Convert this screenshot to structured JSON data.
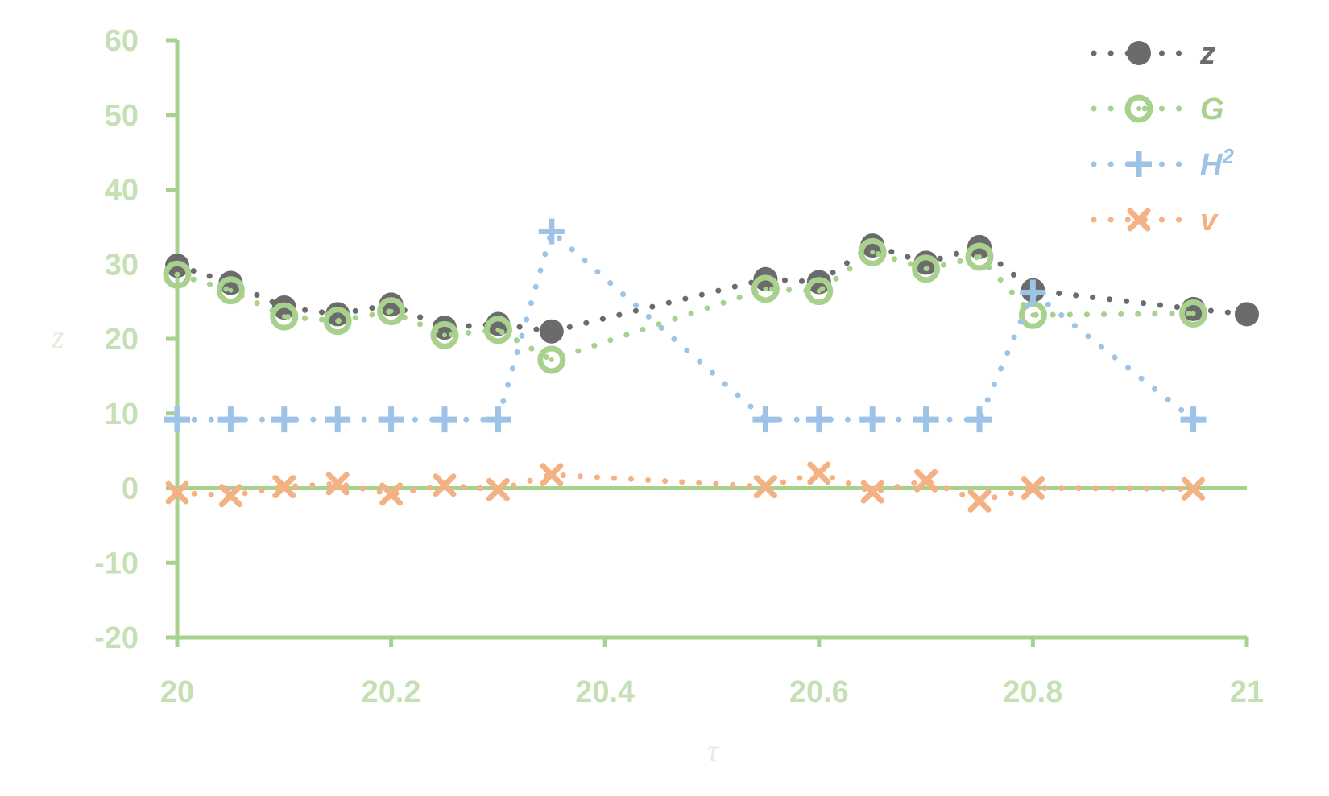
{
  "chart_data": {
    "type": "scatter",
    "xlabel": "τ",
    "ylabel": "z",
    "xlim": [
      20,
      21
    ],
    "ylim": [
      -20,
      60
    ],
    "x_ticks": [
      "20",
      "20.2",
      "20.4",
      "20.6",
      "20.8",
      "21"
    ],
    "y_ticks": [
      "60",
      "50",
      "40",
      "30",
      "20",
      "10",
      "0",
      "-10",
      "-20"
    ],
    "grid": false,
    "legend_position": "top-right",
    "series": [
      {
        "name": "z",
        "label_main": "z",
        "label_sup": "",
        "color": "#6b6b6b",
        "marker": "filled-circle",
        "x": [
          20,
          20.05,
          20.1,
          20.15,
          20.2,
          20.25,
          20.3,
          20.35,
          20.55,
          20.6,
          20.65,
          20.7,
          20.75,
          20.8,
          20.95,
          21
        ],
        "y": [
          29.8,
          27.5,
          24.2,
          23.3,
          24.6,
          21.5,
          22.0,
          21.0,
          28.0,
          27.6,
          32.5,
          30.2,
          32.3,
          26.5,
          24.0,
          23.3
        ]
      },
      {
        "name": "G",
        "label_main": "G",
        "label_sup": "",
        "color": "#a9d18e",
        "marker": "ring",
        "x": [
          20,
          20.05,
          20.1,
          20.15,
          20.2,
          20.25,
          20.3,
          20.35,
          20.55,
          20.6,
          20.65,
          20.7,
          20.75,
          20.8,
          20.95
        ],
        "y": [
          28.6,
          26.5,
          23.0,
          22.4,
          23.7,
          20.5,
          21.2,
          17.2,
          26.7,
          26.4,
          31.6,
          29.4,
          31.0,
          23.2,
          23.4
        ]
      },
      {
        "name": "H²",
        "label_main": "H",
        "label_sup": "2",
        "color": "#9dc3e6",
        "marker": "plus",
        "x": [
          20,
          20.05,
          20.1,
          20.15,
          20.2,
          20.25,
          20.3,
          20.35,
          20.55,
          20.6,
          20.65,
          20.7,
          20.75,
          20.8,
          20.95
        ],
        "y": [
          9.2,
          9.2,
          9.2,
          9.2,
          9.2,
          9.2,
          9.2,
          34.4,
          9.2,
          9.2,
          9.2,
          9.2,
          9.2,
          26.2,
          9.2
        ]
      },
      {
        "name": "v",
        "label_main": "v",
        "label_sup": "",
        "color": "#f4b183",
        "marker": "cross",
        "x": [
          20,
          20.05,
          20.1,
          20.15,
          20.2,
          20.25,
          20.3,
          20.35,
          20.55,
          20.6,
          20.65,
          20.7,
          20.75,
          20.8,
          20.95
        ],
        "y": [
          -0.6,
          -1.0,
          0.2,
          0.6,
          -0.8,
          0.4,
          -0.2,
          1.8,
          0.2,
          2.0,
          -0.5,
          1.0,
          -1.7,
          0.0,
          -0.1
        ]
      }
    ]
  }
}
